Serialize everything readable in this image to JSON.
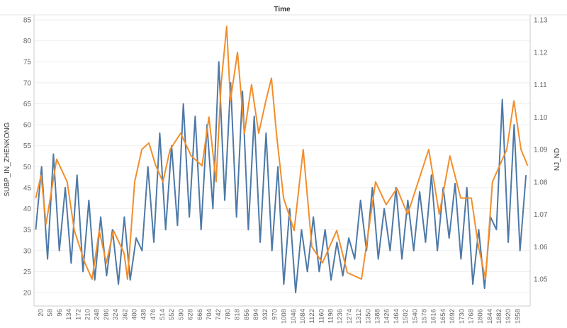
{
  "chart_data": {
    "type": "line",
    "title": "Time",
    "xlabel": "",
    "ylabel": "SUBP_IN_ZHENKONG",
    "ylabel_right": "NJ_ND",
    "xlim": [
      1,
      2000
    ],
    "ylim": [
      17.5,
      86
    ],
    "ylim_right": [
      1.0435,
      1.132
    ],
    "grid": true,
    "x_ticks": [
      "20",
      "58",
      "96",
      "134",
      "172",
      "210",
      "248",
      "286",
      "324",
      "362",
      "400",
      "438",
      "476",
      "514",
      "552",
      "590",
      "628",
      "666",
      "704",
      "742",
      "780",
      "818",
      "856",
      "894",
      "932",
      "970",
      "1008",
      "1046",
      "1084",
      "1122",
      "1160",
      "1198",
      "1236",
      "1274",
      "1312",
      "1350",
      "1388",
      "1426",
      "1464",
      "1502",
      "1540",
      "1578",
      "1616",
      "1654",
      "1692",
      "1730",
      "1768",
      "1806",
      "1844",
      "1882",
      "1920",
      "1958"
    ],
    "y_ticks": [
      "20",
      "25",
      "30",
      "35",
      "40",
      "45",
      "50",
      "55",
      "60",
      "65",
      "70",
      "75",
      "80",
      "85"
    ],
    "y_ticks_right": [
      "1.05",
      "1.06",
      "1.07",
      "1.08",
      "1.09",
      "1.10",
      "1.11",
      "1.12",
      "1.13"
    ],
    "series": [
      {
        "name": "SUBP_IN_ZHENKONG",
        "axis": "left",
        "color": "#4e79a7",
        "x_start": 1,
        "x_step": 24,
        "values": [
          35,
          50,
          28,
          53,
          30,
          45,
          27,
          48,
          25,
          42,
          23,
          38,
          24,
          35,
          22,
          38,
          23,
          33,
          30,
          50,
          32,
          58,
          35,
          55,
          36,
          65,
          38,
          62,
          35,
          60,
          40,
          75,
          42,
          70,
          38,
          68,
          35,
          62,
          32,
          58,
          30,
          50,
          22,
          40,
          20,
          35,
          25,
          38,
          25,
          35,
          23,
          32,
          24,
          33,
          28,
          42,
          30,
          45,
          28,
          40,
          30,
          45,
          28,
          42,
          30,
          44,
          32,
          48,
          30,
          45,
          33,
          46,
          28,
          45,
          22,
          35,
          21,
          38,
          35,
          66,
          32,
          60,
          30,
          48
        ]
      },
      {
        "name": "NJ_ND",
        "axis": "right",
        "color": "#f28e2b",
        "x": [
          1,
          23,
          43,
          86,
          129,
          158,
          201,
          230,
          259,
          288,
          317,
          360,
          374,
          403,
          432,
          461,
          489,
          518,
          547,
          590,
          633,
          677,
          705,
          734,
          754,
          777,
          792,
          821,
          849,
          878,
          907,
          936,
          959,
          979,
          1008,
          1051,
          1088,
          1123,
          1166,
          1224,
          1267,
          1325,
          1382,
          1425,
          1469,
          1512,
          1555,
          1598,
          1641,
          1684,
          1728,
          1771,
          1800,
          1829,
          1857,
          1886,
          1915,
          1944,
          1973,
          2000
        ],
        "values": [
          1.075,
          1.082,
          1.067,
          1.087,
          1.08,
          1.065,
          1.055,
          1.05,
          1.065,
          1.055,
          1.065,
          1.058,
          1.05,
          1.08,
          1.09,
          1.092,
          1.085,
          1.08,
          1.09,
          1.095,
          1.088,
          1.085,
          1.1,
          1.08,
          1.11,
          1.128,
          1.105,
          1.12,
          1.095,
          1.11,
          1.095,
          1.105,
          1.112,
          1.095,
          1.075,
          1.065,
          1.09,
          1.06,
          1.055,
          1.065,
          1.052,
          1.05,
          1.08,
          1.073,
          1.078,
          1.07,
          1.08,
          1.09,
          1.07,
          1.088,
          1.075,
          1.075,
          1.06,
          1.05,
          1.08,
          1.085,
          1.09,
          1.105,
          1.09,
          1.085
        ]
      }
    ]
  }
}
